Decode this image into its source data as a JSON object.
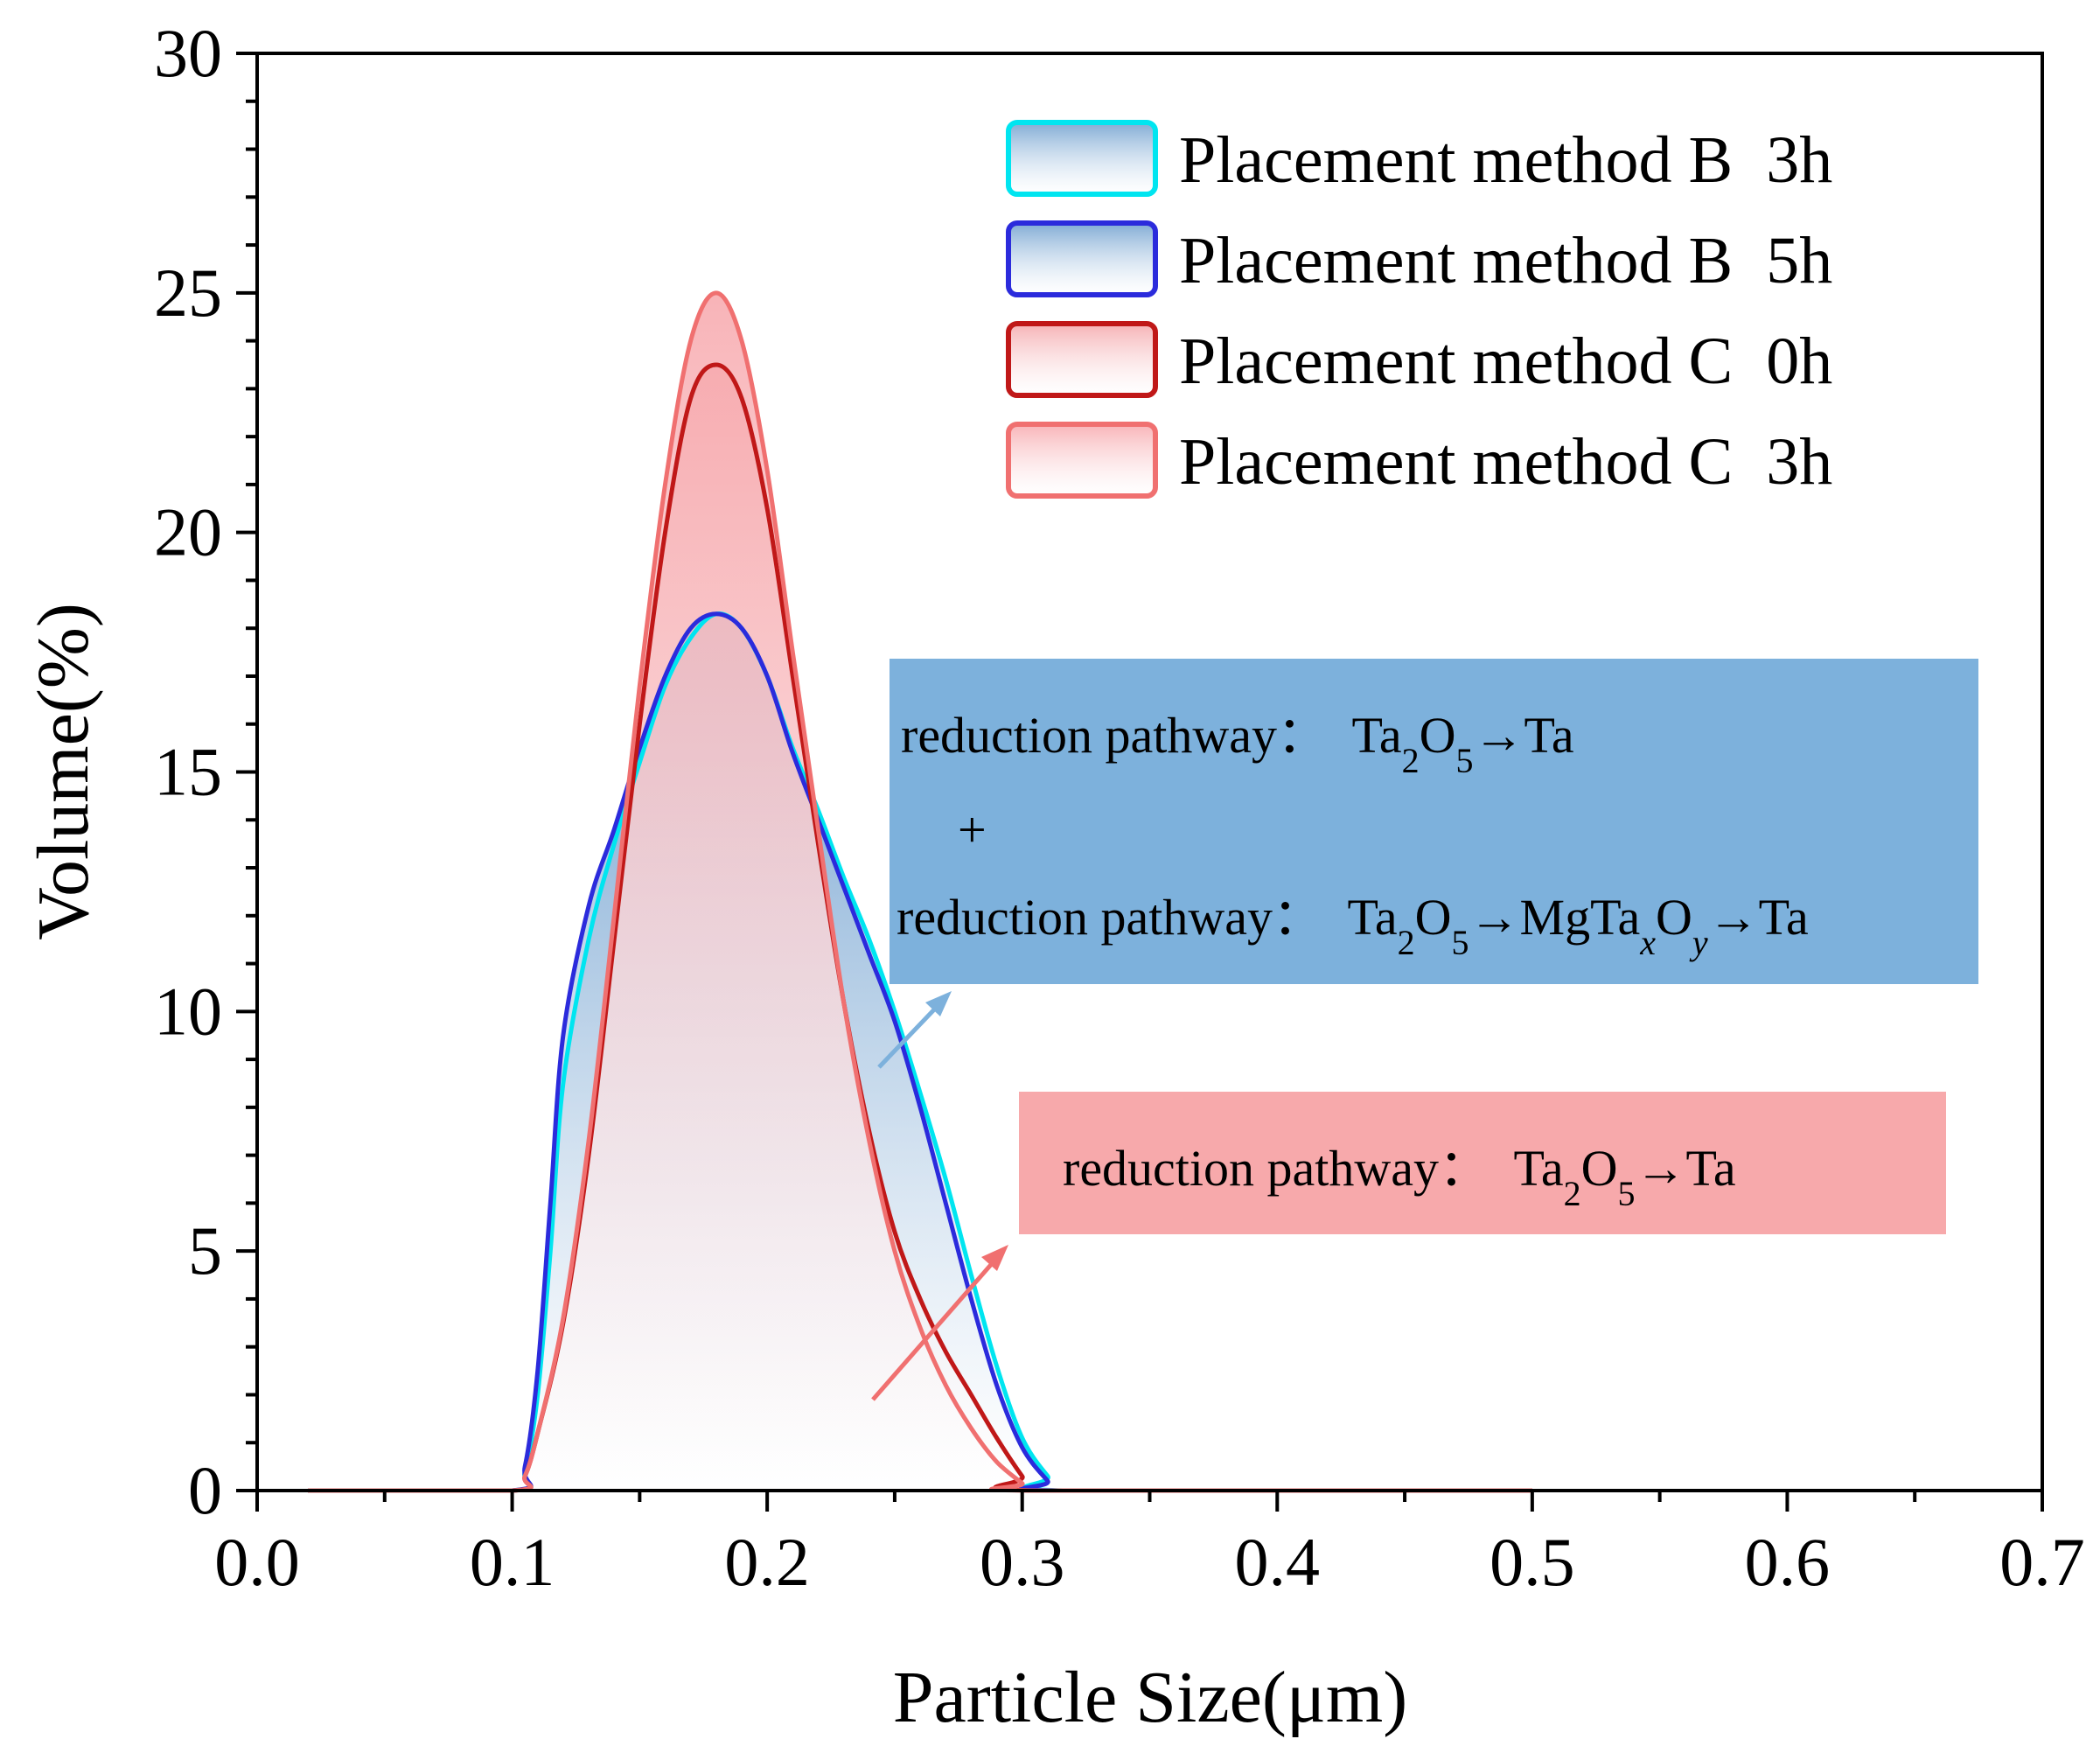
{
  "chart_data": {
    "type": "area",
    "title": "",
    "xlabel": "Particle Size(μm)",
    "ylabel": "Volume(%)",
    "xlim": [
      0.0,
      0.7
    ],
    "ylim": [
      0,
      30
    ],
    "xticks": [
      "0.0",
      "0.1",
      "0.2",
      "0.3",
      "0.4",
      "0.5",
      "0.6",
      "0.7"
    ],
    "yticks": [
      "0",
      "5",
      "10",
      "15",
      "20",
      "25",
      "30"
    ],
    "legend_position": "top-right",
    "series": [
      {
        "name": "Placement method B  3h",
        "color": "#00e5f0",
        "fill_top": "#6a9ccd",
        "fill_bottom": "#ffffff",
        "points": [
          [
            0.02,
            0
          ],
          [
            0.1,
            0
          ],
          [
            0.105,
            0.4
          ],
          [
            0.11,
            2.0
          ],
          [
            0.115,
            5.0
          ],
          [
            0.12,
            8.5
          ],
          [
            0.13,
            11.5
          ],
          [
            0.14,
            13.5
          ],
          [
            0.15,
            15.2
          ],
          [
            0.16,
            16.8
          ],
          [
            0.17,
            17.8
          ],
          [
            0.18,
            18.3
          ],
          [
            0.19,
            18.0
          ],
          [
            0.2,
            17.0
          ],
          [
            0.21,
            15.5
          ],
          [
            0.22,
            14.2
          ],
          [
            0.23,
            12.8
          ],
          [
            0.24,
            11.5
          ],
          [
            0.25,
            10.0
          ],
          [
            0.26,
            8.3
          ],
          [
            0.27,
            6.5
          ],
          [
            0.28,
            4.5
          ],
          [
            0.29,
            2.6
          ],
          [
            0.3,
            1.1
          ],
          [
            0.31,
            0.3
          ],
          [
            0.316,
            0
          ],
          [
            0.5,
            0
          ]
        ]
      },
      {
        "name": "Placement method B  5h",
        "color": "#2b2bdc",
        "fill_top": "#6a9ccd",
        "fill_bottom": "#ffffff",
        "points": [
          [
            0.02,
            0
          ],
          [
            0.1,
            0
          ],
          [
            0.105,
            0.5
          ],
          [
            0.11,
            2.5
          ],
          [
            0.115,
            6.0
          ],
          [
            0.12,
            9.5
          ],
          [
            0.13,
            12.2
          ],
          [
            0.14,
            13.8
          ],
          [
            0.15,
            15.5
          ],
          [
            0.16,
            17.0
          ],
          [
            0.17,
            18.0
          ],
          [
            0.18,
            18.3
          ],
          [
            0.19,
            18.0
          ],
          [
            0.2,
            17.0
          ],
          [
            0.21,
            15.4
          ],
          [
            0.22,
            14.0
          ],
          [
            0.23,
            12.6
          ],
          [
            0.24,
            11.2
          ],
          [
            0.25,
            9.8
          ],
          [
            0.26,
            8.0
          ],
          [
            0.27,
            6.0
          ],
          [
            0.28,
            4.0
          ],
          [
            0.29,
            2.2
          ],
          [
            0.3,
            0.9
          ],
          [
            0.31,
            0.2
          ],
          [
            0.314,
            0
          ],
          [
            0.5,
            0
          ]
        ]
      },
      {
        "name": "Placement method C  0h",
        "color": "#c01818",
        "fill_top": "#f4a4a8",
        "fill_bottom": "#ffffff",
        "points": [
          [
            0.02,
            0
          ],
          [
            0.1,
            0
          ],
          [
            0.105,
            0.3
          ],
          [
            0.11,
            1.2
          ],
          [
            0.12,
            3.5
          ],
          [
            0.13,
            7.0
          ],
          [
            0.14,
            11.5
          ],
          [
            0.15,
            16.0
          ],
          [
            0.16,
            20.0
          ],
          [
            0.17,
            22.8
          ],
          [
            0.18,
            23.5
          ],
          [
            0.19,
            22.8
          ],
          [
            0.2,
            20.5
          ],
          [
            0.21,
            17.0
          ],
          [
            0.22,
            13.5
          ],
          [
            0.23,
            10.2
          ],
          [
            0.24,
            7.5
          ],
          [
            0.25,
            5.4
          ],
          [
            0.26,
            4.0
          ],
          [
            0.27,
            2.9
          ],
          [
            0.28,
            2.0
          ],
          [
            0.29,
            1.1
          ],
          [
            0.3,
            0.3
          ],
          [
            0.305,
            0
          ],
          [
            0.5,
            0
          ]
        ]
      },
      {
        "name": "Placement method C  3h",
        "color": "#f07070",
        "fill_top": "#f7a6ab",
        "fill_bottom": "#ffffff",
        "points": [
          [
            0.02,
            0
          ],
          [
            0.1,
            0
          ],
          [
            0.105,
            0.3
          ],
          [
            0.11,
            1.2
          ],
          [
            0.12,
            3.6
          ],
          [
            0.13,
            7.3
          ],
          [
            0.14,
            12.0
          ],
          [
            0.15,
            16.8
          ],
          [
            0.16,
            21.0
          ],
          [
            0.17,
            24.0
          ],
          [
            0.18,
            25.0
          ],
          [
            0.19,
            24.0
          ],
          [
            0.2,
            21.3
          ],
          [
            0.21,
            17.5
          ],
          [
            0.22,
            13.8
          ],
          [
            0.23,
            10.2
          ],
          [
            0.24,
            7.3
          ],
          [
            0.25,
            5.0
          ],
          [
            0.26,
            3.4
          ],
          [
            0.27,
            2.2
          ],
          [
            0.28,
            1.3
          ],
          [
            0.29,
            0.6
          ],
          [
            0.3,
            0.15
          ],
          [
            0.303,
            0
          ],
          [
            0.5,
            0
          ]
        ]
      }
    ],
    "annotations": {
      "blue_box": {
        "color": "#7db1dc",
        "line1": {
          "prefix": "reduction pathway：",
          "formula": "Ta2O5→Ta"
        },
        "plus": "+",
        "line2": {
          "prefix": "reduction pathway：",
          "formula": "Ta2O5→MgTaxOy→Ta"
        }
      },
      "red_box": {
        "color": "#f7a9ab",
        "line1": {
          "prefix": "reduction pathway：",
          "formula": "Ta2O5→Ta"
        }
      }
    }
  }
}
